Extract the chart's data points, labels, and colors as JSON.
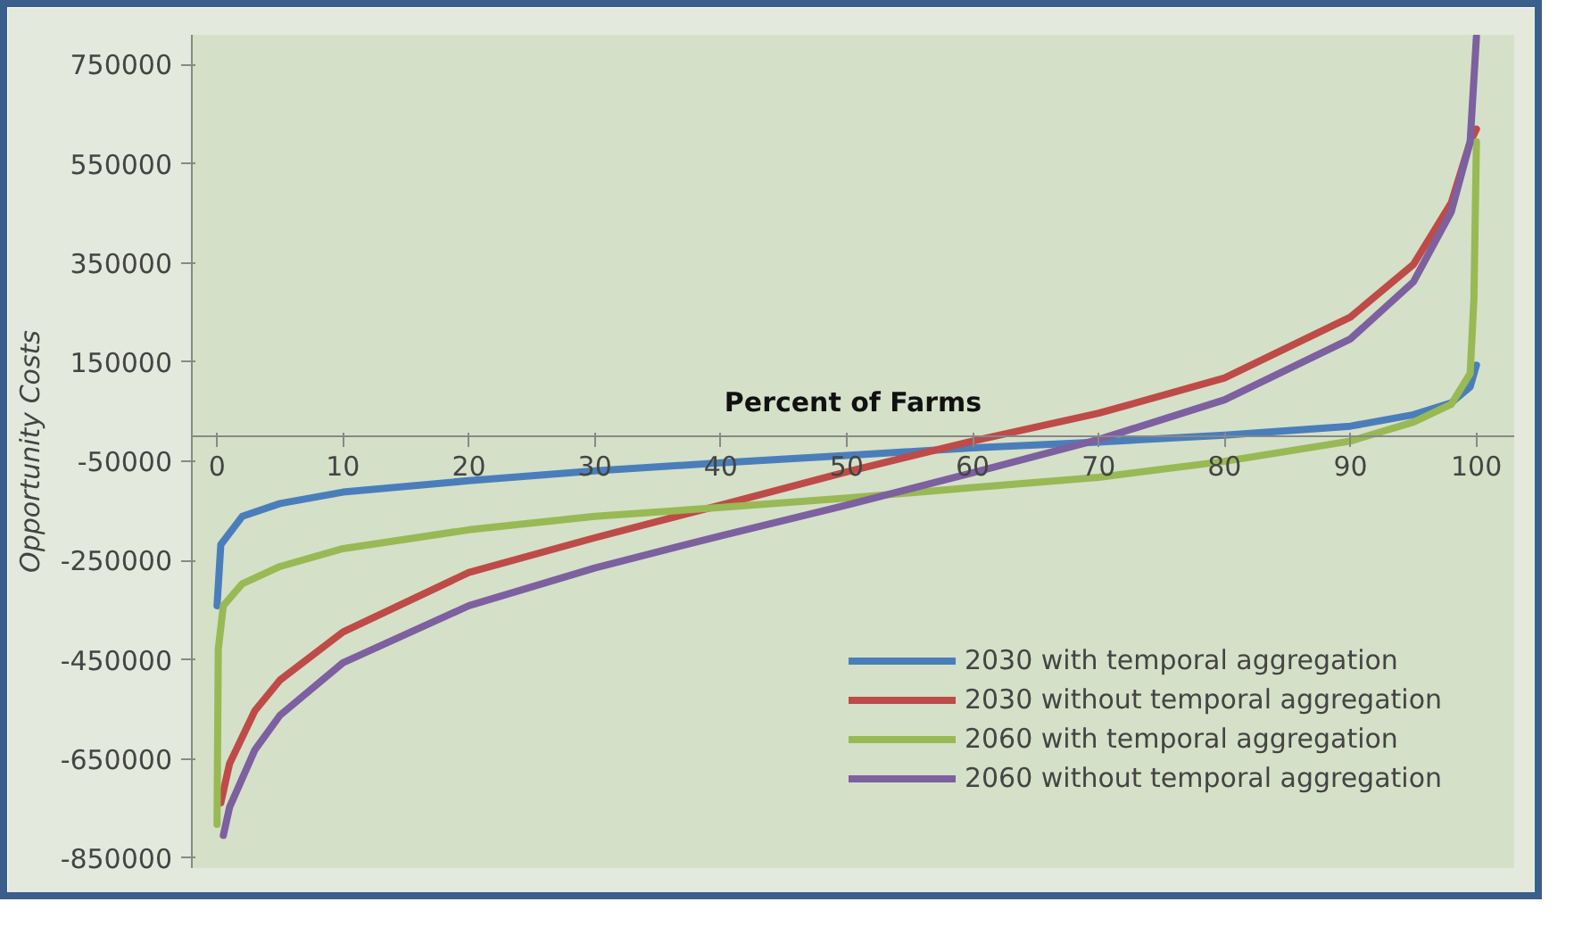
{
  "chart_data": {
    "type": "line",
    "xlabel": "Percent of Farms",
    "ylabel": "Opportunity Costs",
    "xlim": [
      -2,
      103
    ],
    "xticks": [
      0,
      10,
      20,
      30,
      40,
      50,
      60,
      70,
      80,
      90,
      100
    ],
    "ylim": [
      -870000,
      810000
    ],
    "yticks": [
      -850000,
      -650000,
      -450000,
      -250000,
      -50000,
      150000,
      350000,
      550000,
      750000
    ],
    "grid": false,
    "legend": "bottom right",
    "line_style": "solid",
    "marker": "none",
    "series": [
      {
        "name": "2030 with temporal aggregation",
        "color": "#4a7ebb",
        "x": [
          0,
          0.3,
          2,
          5,
          10,
          20,
          30,
          40,
          50,
          60,
          70,
          80,
          90,
          95,
          98,
          99.5,
          100
        ],
        "values": [
          -341000,
          -218000,
          -161000,
          -135000,
          -112000,
          -89000,
          -69000,
          -53000,
          -38000,
          -23000,
          -11000,
          3000,
          21000,
          44000,
          68000,
          100000,
          144000
        ]
      },
      {
        "name": "2030 without temporal aggregation",
        "color": "#be4b48",
        "x": [
          0.3,
          1,
          3,
          5,
          10,
          20,
          30,
          40,
          50,
          60,
          70,
          80,
          90,
          95,
          98,
          99.5,
          100
        ],
        "values": [
          -738000,
          -659000,
          -553000,
          -491000,
          -394000,
          -274000,
          -204000,
          -138000,
          -71000,
          -9000,
          47000,
          118000,
          241000,
          347000,
          471000,
          594000,
          620000
        ]
      },
      {
        "name": "2060 with temporal aggregation",
        "color": "#98b954",
        "x": [
          0,
          0.1,
          0.5,
          2,
          5,
          10,
          20,
          30,
          40,
          50,
          60,
          70,
          80,
          90,
          95,
          98,
          99.5,
          99.8,
          100
        ],
        "values": [
          -782000,
          -429000,
          -341000,
          -297000,
          -262000,
          -226000,
          -188000,
          -161000,
          -143000,
          -124000,
          -103000,
          -82000,
          -50000,
          -9000,
          29000,
          65000,
          127000,
          277000,
          594000
        ]
      },
      {
        "name": "2060 without temporal aggregation",
        "color": "#7d60a0",
        "x": [
          0.5,
          1,
          3,
          5,
          10,
          20,
          30,
          40,
          50,
          60,
          70,
          80,
          90,
          95,
          98,
          99.5,
          100
        ],
        "values": [
          -804000,
          -747000,
          -632000,
          -562000,
          -456000,
          -341000,
          -265000,
          -200000,
          -138000,
          -73000,
          -6000,
          74000,
          197000,
          312000,
          453000,
          594000,
          806000
        ]
      }
    ]
  }
}
